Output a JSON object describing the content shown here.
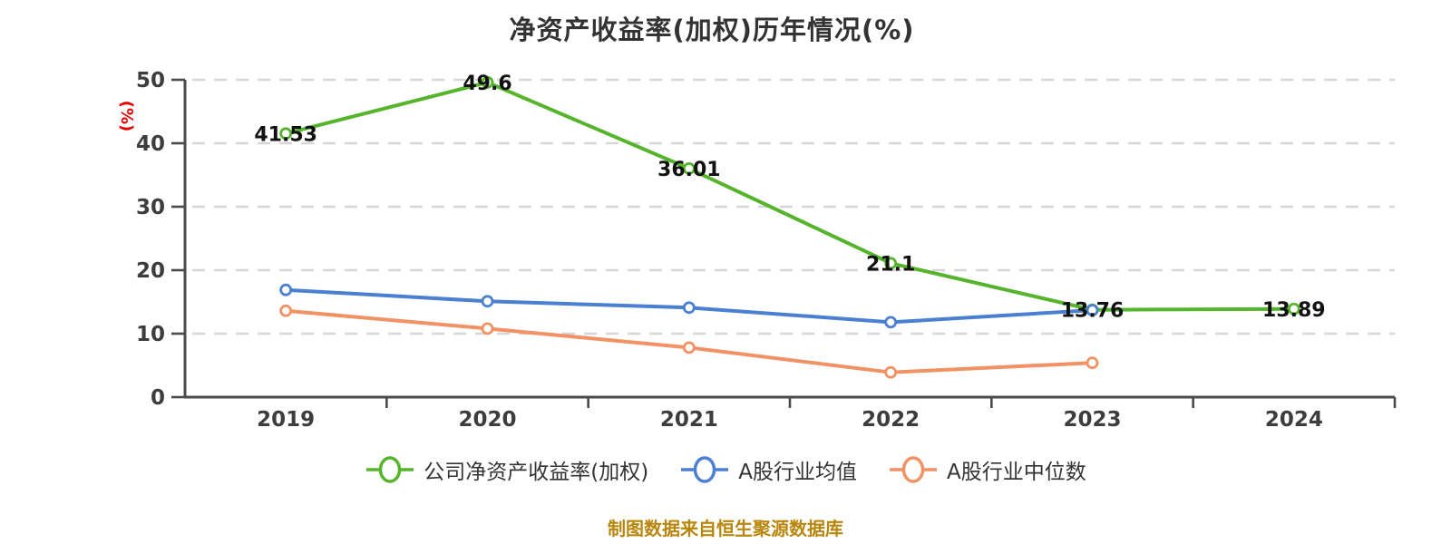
{
  "header": {
    "title": "净资产收益率(加权)历年情况(%)"
  },
  "axes": {
    "y_unit_label": "(%)",
    "y_ticks": [
      "0",
      "10",
      "20",
      "30",
      "40",
      "50"
    ],
    "x_ticks": [
      "2019",
      "2020",
      "2021",
      "2022",
      "2023",
      "2024"
    ]
  },
  "footer": {
    "source_note": "制图数据来自恒生聚源数据库"
  },
  "colors": {
    "company_series": "#55b42c",
    "industry_mean_series": "#4b7fd1",
    "industry_median_series": "#f westerse09264",
    "y_unit_label": "#e60000",
    "source_note": "#b8860b",
    "grid": "#d6d6d6",
    "axis": "#4a4a4a",
    "tick_text": "#3d3d3d",
    "data_label": "#111111"
  },
  "chart_data": {
    "type": "line",
    "title": "净资产收益率(加权)历年情况(%)",
    "categories": [
      "2019",
      "2020",
      "2021",
      "2022",
      "2023",
      "2024"
    ],
    "xlabel": "",
    "ylabel": "(%)",
    "ylim": [
      0,
      50
    ],
    "yticks": [
      0,
      10,
      20,
      30,
      40,
      50
    ],
    "grid": "horizontal-dashed",
    "legend_position": "bottom",
    "series": [
      {
        "name": "公司净资产收益率(加权)",
        "color": "#55b42c",
        "values": [
          41.53,
          49.6,
          36.01,
          21.1,
          13.76,
          13.89
        ],
        "point_labels": [
          "41.53",
          "49.6",
          "36.01",
          "21.1",
          "13.76",
          "13.89"
        ]
      },
      {
        "name": "A股行业均值",
        "color": "#4b7fd1",
        "values": [
          16.9,
          15.1,
          14.1,
          11.8,
          13.7,
          null
        ],
        "point_labels": null
      },
      {
        "name": "A股行业中位数",
        "color": "#f09264",
        "values": [
          13.6,
          10.8,
          7.8,
          3.9,
          5.4,
          null
        ],
        "point_labels": null
      }
    ]
  }
}
